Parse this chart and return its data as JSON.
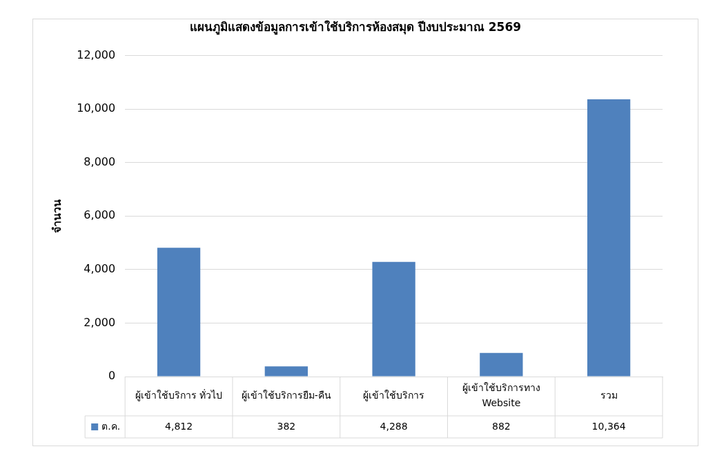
{
  "chart_data": {
    "type": "bar",
    "title": "แผนภูมิแสดงข้อมูลการเข้าใช้บริการห้องสมุด ปีงบประมาณ 2569",
    "ylabel": "จำนวน",
    "categories": [
      "ผู้เข้าใช้บริการ ทั่วไป",
      "ผู้เข้าใช้บริการยืม-คืน",
      "ผู้เข้าใช้บริการ",
      "ผู้เข้าใช้บริการทาง Website",
      "รวม"
    ],
    "series": [
      {
        "name": "ต.ค.",
        "color": "#4f81bd",
        "values": [
          4812,
          382,
          4288,
          882,
          10364
        ]
      }
    ],
    "value_labels": [
      "4,812",
      "382",
      "4,288",
      "882",
      "10,364"
    ],
    "ylim": [
      0,
      12000
    ],
    "yticks": [
      0,
      {
        "value": 2000,
        "label": "2,000"
      },
      {
        "value": 4000,
        "label": "4,000"
      },
      {
        "value": 6000,
        "label": "6,000"
      },
      {
        "value": 8000,
        "label": "8,000"
      },
      {
        "value": 10000,
        "label": "10,000"
      },
      {
        "value": 12000,
        "label": "12,000"
      }
    ],
    "grid": "y",
    "legend": "bottom"
  }
}
